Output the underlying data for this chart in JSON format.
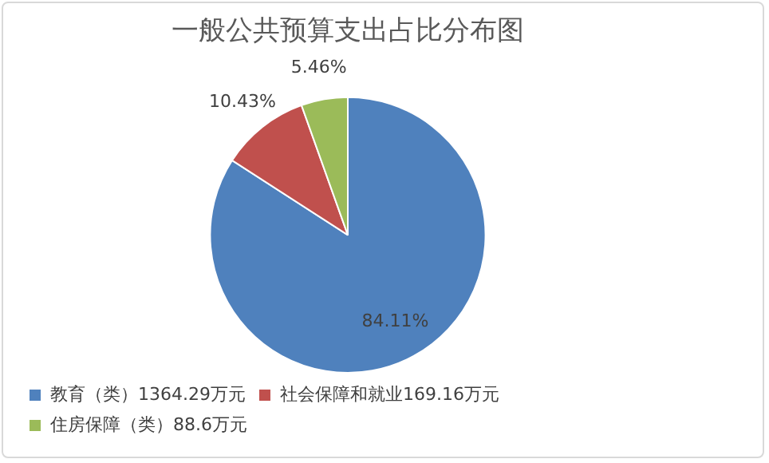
{
  "chart_data": {
    "type": "pie",
    "title": "一般公共预算支出占比分布图",
    "categories": [
      "教育（类）1364.29万元",
      "社会保障和就业169.16万元",
      "住房保障（类）88.6万元"
    ],
    "values": [
      84.11,
      10.43,
      5.46
    ],
    "colors": [
      "#4f81bd",
      "#c0504d",
      "#9bbb59"
    ],
    "value_labels": [
      "84.11%",
      "10.43%",
      "5.46%"
    ],
    "legend": "bottom"
  }
}
